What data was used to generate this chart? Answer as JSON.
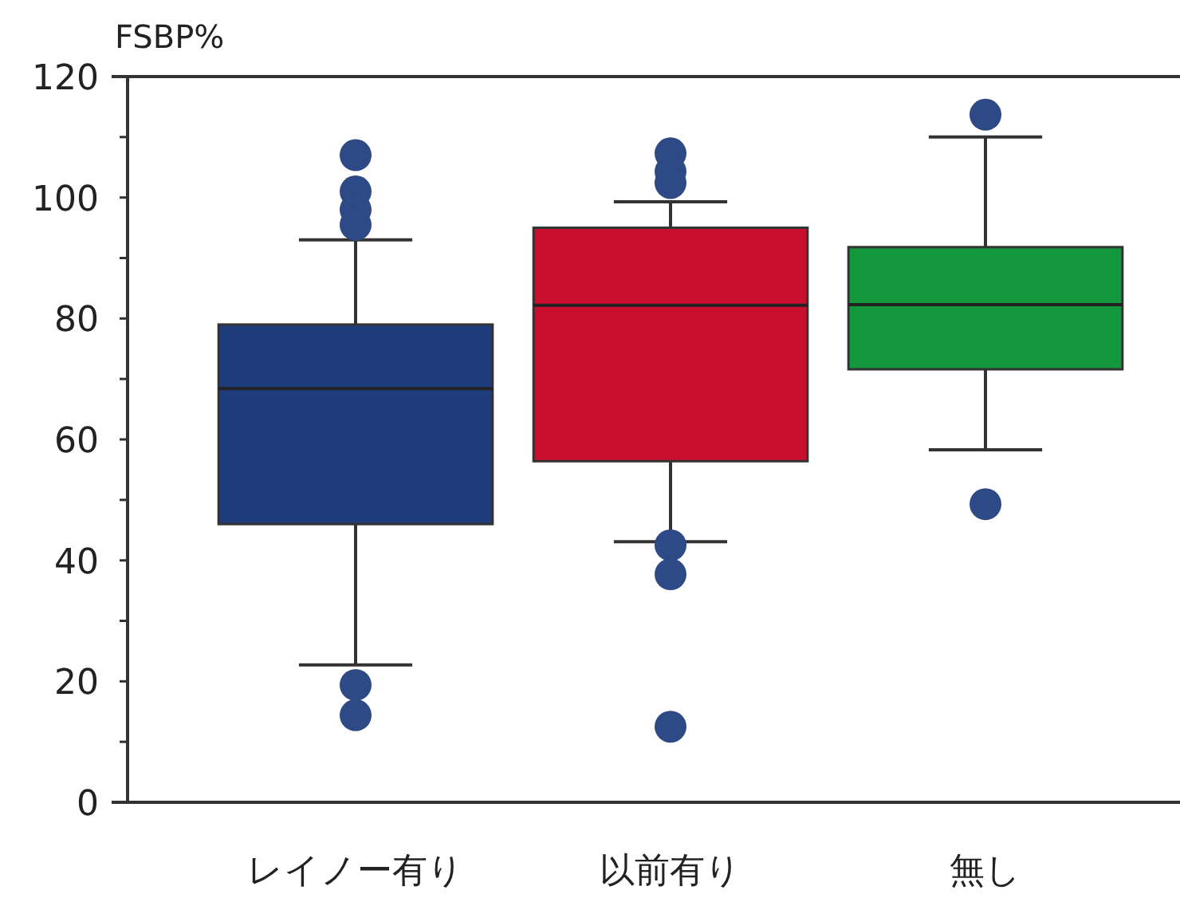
{
  "chart_data": {
    "type": "box",
    "ylabel": "FSBP%",
    "categories": [
      "レイノー有り",
      "以前有り",
      "無し"
    ],
    "colors": [
      "#1e3c7c",
      "#c8102e",
      "#13983e"
    ],
    "boxes": [
      {
        "low": 22.7,
        "q1": 46,
        "median": 68.4,
        "q3": 79,
        "high": 93,
        "outliers": [
          107,
          101,
          98,
          95.5,
          19.4,
          14.4
        ]
      },
      {
        "low": 43.1,
        "q1": 56.4,
        "median": 82.2,
        "q3": 95,
        "high": 99.3,
        "outliers": [
          107.3,
          104.3,
          102.4,
          42.5,
          37.7,
          12.5
        ]
      },
      {
        "low": 58.3,
        "q1": 71.6,
        "median": 82.3,
        "q3": 91.8,
        "high": 110,
        "outliers": [
          113.7,
          49.3
        ]
      }
    ],
    "ylim": [
      0,
      120
    ],
    "yticks": [
      0,
      {
        "value": 10,
        "label": null
      },
      20,
      {
        "value": 30,
        "label": null
      },
      40,
      {
        "value": 50,
        "label": null
      },
      60,
      {
        "value": 70,
        "label": null
      },
      80,
      {
        "value": 90,
        "label": null
      },
      100,
      {
        "value": 110,
        "label": null
      },
      120
    ],
    "grid": false
  }
}
